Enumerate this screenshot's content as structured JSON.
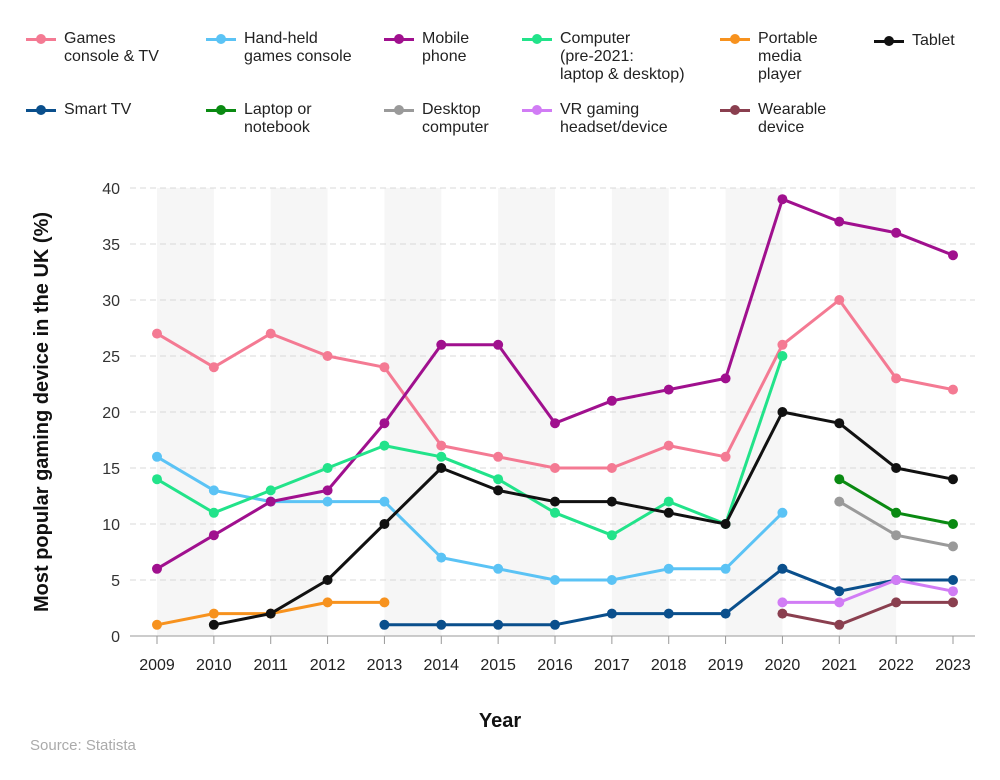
{
  "chart_data": {
    "type": "line",
    "xlabel": "Year",
    "ylabel": "Most popular gaming device in the UK (%)",
    "x": [
      2009,
      2010,
      2011,
      2012,
      2013,
      2014,
      2015,
      2016,
      2017,
      2018,
      2019,
      2020,
      2021,
      2022,
      2023
    ],
    "ylim": [
      0,
      40
    ],
    "yticks": [
      0,
      5,
      10,
      15,
      20,
      25,
      30,
      35,
      40
    ],
    "grid": true,
    "legend_position": "top",
    "series": [
      {
        "name": "Games console & TV",
        "color": "#f47a93",
        "values": [
          27,
          24,
          27,
          25,
          24,
          17,
          16,
          15,
          15,
          17,
          16,
          26,
          30,
          23,
          22
        ]
      },
      {
        "name": "Hand-held games console",
        "color": "#5bc3f5",
        "values": [
          16,
          13,
          12,
          12,
          12,
          7,
          6,
          5,
          5,
          6,
          6,
          11,
          null,
          null,
          null
        ]
      },
      {
        "name": "Mobile phone",
        "color": "#a0108e",
        "values": [
          6,
          9,
          12,
          13,
          19,
          26,
          26,
          19,
          21,
          22,
          23,
          39,
          37,
          36,
          34
        ]
      },
      {
        "name": "Computer (pre-2021: laptop & desktop)",
        "color": "#22e38a",
        "values": [
          14,
          11,
          13,
          15,
          17,
          16,
          14,
          11,
          9,
          12,
          10,
          25,
          null,
          null,
          null
        ]
      },
      {
        "name": "Portable media player",
        "color": "#f7921e",
        "values": [
          1,
          2,
          2,
          3,
          3,
          null,
          null,
          null,
          null,
          null,
          null,
          null,
          null,
          null,
          null
        ]
      },
      {
        "name": "Tablet",
        "color": "#111111",
        "values": [
          null,
          1,
          2,
          5,
          10,
          15,
          13,
          12,
          12,
          11,
          10,
          20,
          19,
          15,
          14
        ]
      },
      {
        "name": "Smart TV",
        "color": "#0a4f8c",
        "values": [
          null,
          null,
          null,
          null,
          1,
          1,
          1,
          1,
          2,
          2,
          2,
          6,
          4,
          5,
          5
        ]
      },
      {
        "name": "Laptop or notebook",
        "color": "#0a8a12",
        "values": [
          null,
          null,
          null,
          null,
          null,
          null,
          null,
          null,
          null,
          null,
          null,
          null,
          14,
          11,
          10
        ]
      },
      {
        "name": "Desktop computer",
        "color": "#9a9a9a",
        "values": [
          null,
          null,
          null,
          null,
          null,
          null,
          null,
          null,
          null,
          null,
          null,
          null,
          12,
          9,
          8
        ]
      },
      {
        "name": "VR gaming headset/device",
        "color": "#d17cf5",
        "values": [
          null,
          null,
          null,
          null,
          null,
          null,
          null,
          null,
          null,
          null,
          null,
          3,
          3,
          5,
          4
        ]
      },
      {
        "name": "Wearable device",
        "color": "#8a3f4f",
        "values": [
          null,
          null,
          null,
          null,
          null,
          null,
          null,
          null,
          null,
          null,
          null,
          2,
          1,
          3,
          3
        ]
      }
    ]
  },
  "legend": [
    {
      "label": "Games\nconsole & TV"
    },
    {
      "label": "Hand-held\ngames console"
    },
    {
      "label": "Mobile\nphone"
    },
    {
      "label": "Computer\n(pre-2021:\nlaptop & desktop)"
    },
    {
      "label": "Portable\nmedia\nplayer"
    },
    {
      "label": "Tablet"
    },
    {
      "label": "Smart TV"
    },
    {
      "label": "Laptop or\nnotebook"
    },
    {
      "label": "Desktop\ncomputer"
    },
    {
      "label": "VR gaming\nheadset/device"
    },
    {
      "label": "Wearable\ndevice"
    }
  ],
  "source": "Source: Statista"
}
